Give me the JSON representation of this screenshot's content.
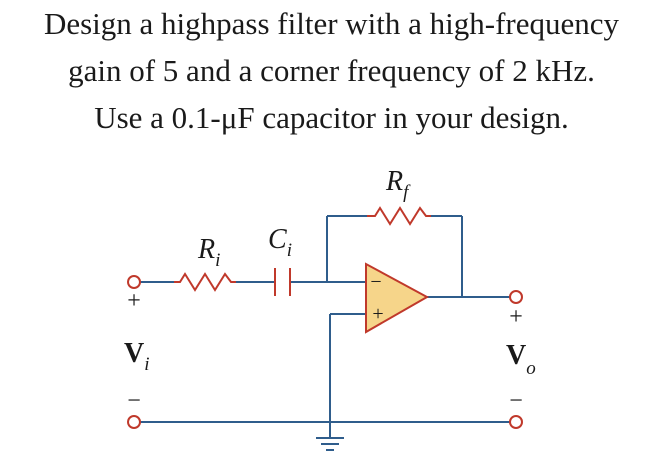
{
  "problem": {
    "line1": "Design a highpass filter with a high-frequency",
    "line2": "gain of 5 and a corner frequency of 2 kHz.",
    "line3": "Use a 0.1-μF capacitor in your design."
  },
  "circuit": {
    "rf": {
      "sym": "R",
      "sub": "f"
    },
    "ri": {
      "sym": "R",
      "sub": "i"
    },
    "ci": {
      "sym": "C",
      "sub": "i"
    },
    "vi": {
      "sym": "V",
      "sub": "i"
    },
    "vo": {
      "sym": "V",
      "sub": "o"
    },
    "opamp_minus": "−",
    "opamp_plus": "+",
    "in_plus": "+",
    "in_minus": "−",
    "out_plus": "+",
    "out_minus": "−"
  },
  "colors": {
    "wire": "#2f5d8c",
    "component": "#c0392b",
    "opamp_fill": "#f6d58a",
    "text": "#1a1a1a"
  }
}
